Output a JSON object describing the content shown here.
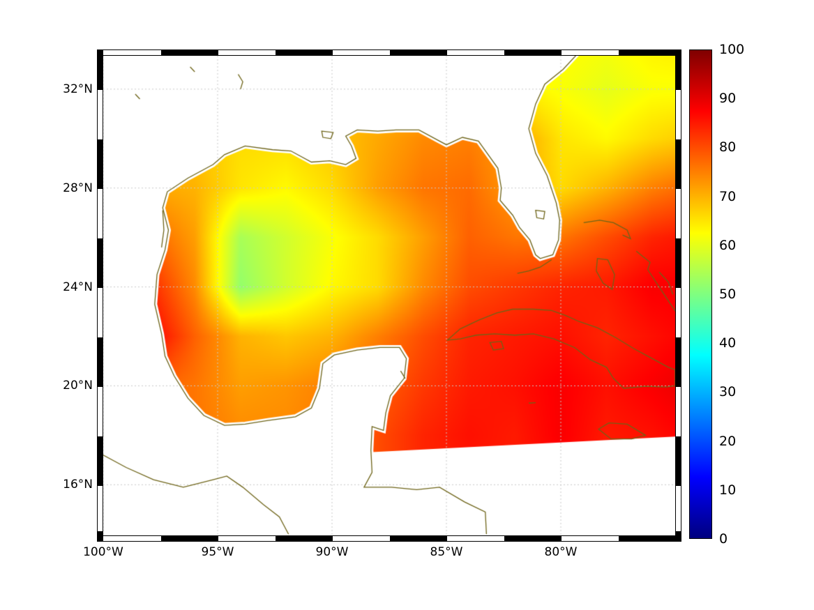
{
  "figure": {
    "background": "#ffffff",
    "text_color": "#000000",
    "grid_color": "#c9c9c9",
    "colorbar": {
      "min": 0,
      "max": 100,
      "tick_values": [
        100,
        90,
        80,
        70,
        60,
        50,
        40,
        30,
        20,
        10,
        0
      ],
      "tick_labels": [
        "100",
        "90",
        "80",
        "70",
        "60",
        "50",
        "40",
        "30",
        "20",
        "10",
        "0"
      ],
      "gradient_stops": [
        {
          "v": 0,
          "color": "#00007f"
        },
        {
          "v": 12.5,
          "color": "#0000ff"
        },
        {
          "v": 37.5,
          "color": "#00ffff"
        },
        {
          "v": 62.5,
          "color": "#ffff00"
        },
        {
          "v": 87.5,
          "color": "#ff0000"
        },
        {
          "v": 100,
          "color": "#7f0000"
        }
      ]
    }
  },
  "chart_data": {
    "type": "heatmap",
    "title": "",
    "colormap": "jet",
    "clim": [
      0,
      100
    ],
    "colorbar_ticks": [
      0,
      10,
      20,
      30,
      40,
      50,
      60,
      70,
      80,
      90,
      100
    ],
    "extent": {
      "lon_min": -100,
      "lon_max": -75,
      "lat_min": 13.95,
      "lat_max": 33.35
    },
    "xticks": {
      "values": [
        -100,
        -95,
        -90,
        -85,
        -80
      ],
      "labels": [
        "100°W",
        "95°W",
        "90°W",
        "85°W",
        "80°W"
      ]
    },
    "yticks": {
      "values": [
        32,
        28,
        24,
        20,
        16
      ],
      "labels": [
        "32°N",
        "28°N",
        "24°N",
        "20°N",
        "16°N"
      ]
    },
    "gridlines": {
      "lons": [
        -100,
        -95,
        -90,
        -85,
        -80
      ],
      "lats": [
        16,
        20,
        24,
        28,
        32
      ],
      "style": "dotted"
    },
    "grid": {
      "lons": [
        -100,
        -98,
        -96,
        -94,
        -92,
        -90,
        -88,
        -86,
        -84,
        -82,
        -80,
        -78,
        -76,
        -74
      ],
      "lats": [
        34,
        32,
        30,
        28,
        26,
        24,
        22,
        20,
        18,
        16,
        14
      ],
      "values": [
        [
          66,
          66,
          66,
          66,
          66,
          66,
          66,
          66,
          66,
          65,
          63,
          62,
          64,
          65
        ],
        [
          68,
          68,
          68,
          68,
          68,
          68,
          68,
          68,
          66,
          64,
          62,
          60,
          62,
          62
        ],
        [
          70,
          70,
          68,
          66,
          66,
          68,
          71,
          74,
          75,
          72,
          65,
          63,
          66,
          68
        ],
        [
          72,
          71,
          70,
          65,
          63,
          66,
          72,
          76,
          77,
          72,
          66,
          70,
          75,
          78
        ],
        [
          80,
          78,
          72,
          54,
          58,
          62,
          66,
          72,
          78,
          76,
          76,
          80,
          84,
          86
        ],
        [
          80,
          84,
          74,
          52,
          58,
          63,
          66,
          74,
          80,
          82,
          84,
          85,
          88,
          88
        ],
        [
          85,
          88,
          78,
          70,
          68,
          70,
          75,
          80,
          84,
          85,
          86,
          84,
          86,
          88
        ],
        [
          80,
          78,
          76,
          72,
          73,
          75,
          78,
          82,
          85,
          86,
          88,
          86,
          88,
          90
        ],
        [
          78,
          78,
          76,
          74,
          74,
          76,
          80,
          84,
          86,
          85,
          88,
          85,
          86,
          88
        ],
        [
          78,
          78,
          76,
          75,
          75,
          76,
          80,
          84,
          85,
          85,
          86,
          85,
          86,
          88
        ],
        [
          78,
          78,
          76,
          75,
          75,
          76,
          80,
          84,
          85,
          85,
          86,
          85,
          86,
          88
        ]
      ]
    }
  },
  "map": {
    "coast_color": "#6e6418",
    "land_fill": "#ffffff",
    "nodata_fill": "#ffffff",
    "mainland_closure": [
      [
        -83.25,
        13.8
      ],
      [
        -100.3,
        13.8
      ],
      [
        -100.3,
        33.6
      ],
      [
        -79.3,
        33.6
      ]
    ],
    "mask_polygons": [
      {
        "name": "domain-edge-southeast",
        "points": [
          [
            -88.7,
            13.8
          ],
          [
            -88.7,
            17.3
          ],
          [
            -75.0,
            17.95
          ],
          [
            -74.8,
            13.8
          ]
        ]
      }
    ],
    "coastlines": [
      {
        "name": "gulf-atlantic-coast",
        "closed": false,
        "points": [
          [
            -79.3,
            33.4
          ],
          [
            -79.9,
            32.8
          ],
          [
            -80.7,
            32.2
          ],
          [
            -81.1,
            31.4
          ],
          [
            -81.4,
            30.4
          ],
          [
            -81.1,
            29.4
          ],
          [
            -80.6,
            28.5
          ],
          [
            -80.2,
            27.4
          ],
          [
            -80.05,
            26.7
          ],
          [
            -80.1,
            25.9
          ],
          [
            -80.35,
            25.3
          ],
          [
            -80.9,
            25.15
          ],
          [
            -81.1,
            25.3
          ],
          [
            -81.35,
            25.9
          ],
          [
            -81.8,
            26.4
          ],
          [
            -82.1,
            26.9
          ],
          [
            -82.65,
            27.5
          ],
          [
            -82.6,
            28.0
          ],
          [
            -82.75,
            28.8
          ],
          [
            -83.6,
            29.9
          ],
          [
            -84.3,
            30.05
          ],
          [
            -85.0,
            29.75
          ],
          [
            -85.4,
            29.95
          ],
          [
            -86.2,
            30.35
          ],
          [
            -87.2,
            30.35
          ],
          [
            -88.0,
            30.3
          ],
          [
            -88.9,
            30.35
          ],
          [
            -89.4,
            30.1
          ],
          [
            -89.15,
            29.7
          ],
          [
            -88.95,
            29.2
          ],
          [
            -89.4,
            28.95
          ],
          [
            -90.1,
            29.1
          ],
          [
            -90.9,
            29.05
          ],
          [
            -91.8,
            29.5
          ],
          [
            -92.6,
            29.55
          ],
          [
            -93.8,
            29.7
          ],
          [
            -94.7,
            29.35
          ],
          [
            -95.2,
            28.95
          ],
          [
            -96.3,
            28.4
          ],
          [
            -97.2,
            27.85
          ],
          [
            -97.4,
            27.2
          ],
          [
            -97.15,
            26.3
          ],
          [
            -97.3,
            25.5
          ],
          [
            -97.65,
            24.5
          ],
          [
            -97.75,
            23.3
          ],
          [
            -97.45,
            22.1
          ],
          [
            -97.3,
            21.2
          ],
          [
            -96.9,
            20.4
          ],
          [
            -96.3,
            19.5
          ],
          [
            -95.6,
            18.8
          ],
          [
            -94.7,
            18.4
          ],
          [
            -93.8,
            18.45
          ],
          [
            -92.8,
            18.6
          ],
          [
            -91.6,
            18.75
          ],
          [
            -90.9,
            19.1
          ],
          [
            -90.55,
            19.9
          ],
          [
            -90.4,
            20.9
          ],
          [
            -89.9,
            21.25
          ],
          [
            -88.9,
            21.45
          ],
          [
            -87.9,
            21.55
          ],
          [
            -87.05,
            21.55
          ],
          [
            -86.75,
            21.1
          ],
          [
            -86.85,
            20.3
          ],
          [
            -87.45,
            19.6
          ],
          [
            -87.65,
            18.9
          ],
          [
            -87.75,
            18.2
          ],
          [
            -88.25,
            18.35
          ],
          [
            -88.3,
            17.4
          ],
          [
            -88.25,
            16.5
          ],
          [
            -88.6,
            15.9
          ],
          [
            -87.4,
            15.9
          ],
          [
            -86.3,
            15.8
          ],
          [
            -85.3,
            15.9
          ],
          [
            -84.2,
            15.3
          ],
          [
            -83.3,
            14.9
          ],
          [
            -83.25,
            14.0
          ]
        ]
      },
      {
        "name": "pacific-coast",
        "closed": false,
        "points": [
          [
            -100.0,
            17.2
          ],
          [
            -99.0,
            16.7
          ],
          [
            -97.8,
            16.2
          ],
          [
            -96.5,
            15.9
          ],
          [
            -95.2,
            16.2
          ],
          [
            -94.6,
            16.35
          ],
          [
            -93.9,
            15.9
          ],
          [
            -93.0,
            15.2
          ],
          [
            -92.3,
            14.7
          ],
          [
            -91.9,
            14.0
          ]
        ]
      },
      {
        "name": "cuba",
        "closed": true,
        "points": [
          [
            -84.95,
            21.85
          ],
          [
            -84.4,
            22.3
          ],
          [
            -83.6,
            22.65
          ],
          [
            -82.8,
            22.95
          ],
          [
            -82.1,
            23.1
          ],
          [
            -81.2,
            23.1
          ],
          [
            -80.4,
            23.05
          ],
          [
            -79.8,
            22.85
          ],
          [
            -79.2,
            22.6
          ],
          [
            -78.4,
            22.35
          ],
          [
            -77.6,
            21.95
          ],
          [
            -76.8,
            21.5
          ],
          [
            -76.1,
            21.15
          ],
          [
            -75.3,
            20.75
          ],
          [
            -75.0,
            20.65
          ],
          [
            -75.0,
            20.0
          ],
          [
            -75.4,
            19.95
          ],
          [
            -76.3,
            19.98
          ],
          [
            -77.25,
            19.9
          ],
          [
            -77.7,
            20.3
          ],
          [
            -78.0,
            20.75
          ],
          [
            -78.7,
            21.05
          ],
          [
            -79.4,
            21.55
          ],
          [
            -80.3,
            21.9
          ],
          [
            -81.2,
            22.1
          ],
          [
            -82.0,
            22.05
          ],
          [
            -82.9,
            22.1
          ],
          [
            -83.7,
            22.05
          ],
          [
            -84.4,
            21.9
          ]
        ]
      },
      {
        "name": "isla-juventud",
        "closed": true,
        "points": [
          [
            -83.1,
            21.75
          ],
          [
            -82.6,
            21.8
          ],
          [
            -82.5,
            21.5
          ],
          [
            -82.95,
            21.45
          ]
        ]
      },
      {
        "name": "florida-keys",
        "closed": false,
        "points": [
          [
            -80.4,
            25.1
          ],
          [
            -80.9,
            24.8
          ],
          [
            -81.4,
            24.65
          ],
          [
            -81.9,
            24.55
          ]
        ]
      },
      {
        "name": "lake-okeechobee",
        "closed": true,
        "points": [
          [
            -81.1,
            27.1
          ],
          [
            -80.7,
            27.05
          ],
          [
            -80.75,
            26.75
          ],
          [
            -81.05,
            26.8
          ]
        ]
      },
      {
        "name": "lake-pontchartrain",
        "closed": true,
        "points": [
          [
            -90.45,
            30.3
          ],
          [
            -89.95,
            30.25
          ],
          [
            -90.05,
            30.0
          ],
          [
            -90.4,
            30.05
          ]
        ]
      },
      {
        "name": "grand-bahama-abaco",
        "closed": false,
        "points": [
          [
            -79.0,
            26.6
          ],
          [
            -78.3,
            26.7
          ],
          [
            -77.7,
            26.6
          ],
          [
            -77.1,
            26.3
          ],
          [
            -76.95,
            25.95
          ],
          [
            -77.3,
            26.1
          ]
        ]
      },
      {
        "name": "andros",
        "closed": true,
        "points": [
          [
            -78.4,
            25.15
          ],
          [
            -77.95,
            25.1
          ],
          [
            -77.65,
            24.5
          ],
          [
            -77.75,
            23.9
          ],
          [
            -78.15,
            24.15
          ],
          [
            -78.45,
            24.65
          ]
        ]
      },
      {
        "name": "eleuthera-exuma",
        "closed": false,
        "points": [
          [
            -76.7,
            25.45
          ],
          [
            -76.1,
            25.0
          ],
          [
            -76.2,
            24.7
          ],
          [
            -75.7,
            24.0
          ],
          [
            -75.2,
            23.3
          ],
          [
            -74.9,
            22.9
          ]
        ]
      },
      {
        "name": "cat-long-island",
        "closed": false,
        "points": [
          [
            -75.7,
            24.6
          ],
          [
            -75.3,
            24.2
          ],
          [
            -75.1,
            23.7
          ]
        ]
      },
      {
        "name": "jamaica",
        "closed": true,
        "points": [
          [
            -78.35,
            18.25
          ],
          [
            -77.9,
            18.5
          ],
          [
            -77.1,
            18.45
          ],
          [
            -76.3,
            18.0
          ],
          [
            -76.9,
            17.85
          ],
          [
            -77.8,
            17.85
          ]
        ]
      },
      {
        "name": "cozumel",
        "closed": false,
        "points": [
          [
            -87.0,
            20.6
          ],
          [
            -86.8,
            20.3
          ]
        ]
      },
      {
        "name": "cayman",
        "closed": false,
        "points": [
          [
            -81.4,
            19.3
          ],
          [
            -81.1,
            19.32
          ]
        ]
      },
      {
        "name": "texas-laguna-madre",
        "closed": false,
        "points": [
          [
            -97.4,
            27.1
          ],
          [
            -97.35,
            26.3
          ],
          [
            -97.45,
            25.6
          ]
        ]
      },
      {
        "name": "inland-lake-1",
        "closed": false,
        "points": [
          [
            -94.1,
            32.6
          ],
          [
            -93.9,
            32.3
          ],
          [
            -94.0,
            32.0
          ]
        ]
      },
      {
        "name": "inland-lake-2",
        "closed": false,
        "points": [
          [
            -96.2,
            32.9
          ],
          [
            -96.0,
            32.7
          ]
        ]
      },
      {
        "name": "inland-lake-3",
        "closed": false,
        "points": [
          [
            -98.6,
            31.8
          ],
          [
            -98.4,
            31.6
          ]
        ]
      }
    ]
  }
}
